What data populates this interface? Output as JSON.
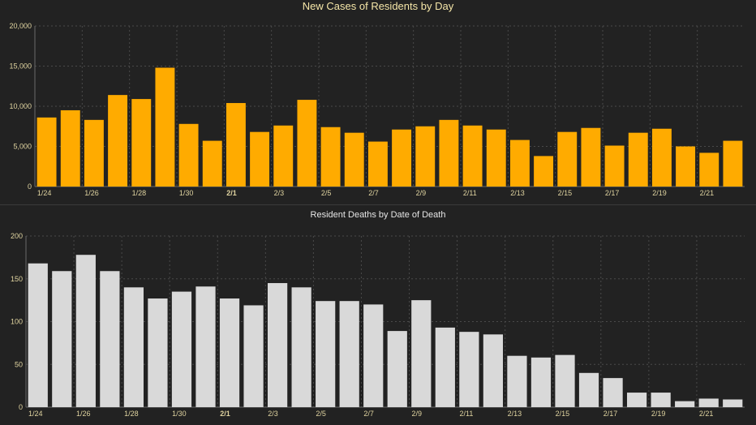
{
  "colors": {
    "background": "#222222",
    "cases_bar": "#ffab00",
    "deaths_bar": "#d9d9d9",
    "grid": "#4a4a4a",
    "title_cases": "#f5e6a8",
    "tick_text": "#e0d4a0"
  },
  "chart_data": [
    {
      "type": "bar",
      "title": "New Cases of Residents by Day",
      "x_tick_labels": [
        "1/24",
        "1/26",
        "1/28",
        "1/30",
        "2/1",
        "2/3",
        "2/5",
        "2/7",
        "2/9",
        "2/11",
        "2/13",
        "2/15",
        "2/17",
        "2/19",
        "2/21"
      ],
      "y_tick_labels": [
        "20,000",
        "15,000",
        "10,000",
        "5,000",
        "0"
      ],
      "categories": [
        "1/24",
        "1/25",
        "1/26",
        "1/27",
        "1/28",
        "1/29",
        "1/30",
        "1/31",
        "2/1",
        "2/2",
        "2/3",
        "2/4",
        "2/5",
        "2/6",
        "2/7",
        "2/8",
        "2/9",
        "2/10",
        "2/11",
        "2/12",
        "2/13",
        "2/14",
        "2/15",
        "2/16",
        "2/17",
        "2/18",
        "2/19",
        "2/20",
        "2/21",
        "2/22"
      ],
      "values": [
        8600,
        9500,
        8300,
        11400,
        10900,
        14800,
        7800,
        5700,
        10400,
        6800,
        7600,
        10800,
        7400,
        6700,
        5600,
        7100,
        7500,
        8300,
        7600,
        7100,
        5800,
        3800,
        6800,
        7300,
        5100,
        6700,
        7200,
        5000,
        4200,
        5700
      ],
      "ylim": [
        0,
        20000
      ],
      "grid": true
    },
    {
      "type": "bar",
      "title": "Resident Deaths by Date of Death",
      "x_tick_labels": [
        "1/24",
        "1/26",
        "1/28",
        "1/30",
        "2/1",
        "2/3",
        "2/5",
        "2/7",
        "2/9",
        "2/11",
        "2/13",
        "2/15",
        "2/17",
        "2/19",
        "2/21"
      ],
      "y_tick_labels": [
        "200",
        "150",
        "100",
        "50",
        "0"
      ],
      "categories": [
        "1/24",
        "1/25",
        "1/26",
        "1/27",
        "1/28",
        "1/29",
        "1/30",
        "1/31",
        "2/1",
        "2/2",
        "2/3",
        "2/4",
        "2/5",
        "2/6",
        "2/7",
        "2/8",
        "2/9",
        "2/10",
        "2/11",
        "2/12",
        "2/13",
        "2/14",
        "2/15",
        "2/16",
        "2/17",
        "2/18",
        "2/19",
        "2/20",
        "2/21",
        "2/22"
      ],
      "values": [
        168,
        159,
        178,
        159,
        140,
        127,
        135,
        141,
        127,
        119,
        145,
        140,
        124,
        124,
        120,
        89,
        125,
        93,
        88,
        85,
        60,
        58,
        61,
        40,
        34,
        17,
        17,
        7,
        10,
        9
      ],
      "ylim": [
        0,
        200
      ],
      "grid": true
    }
  ]
}
